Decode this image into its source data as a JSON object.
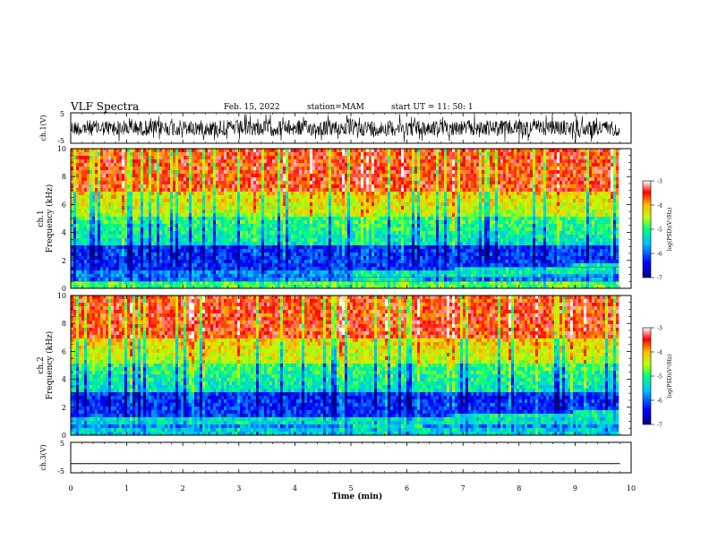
{
  "header": {
    "title": "VLF Spectra",
    "date": "Feb. 15, 2022",
    "station": "station=MAM",
    "start_ut": "start  UT  =   11: 50: 1"
  },
  "panels": {
    "waveform1": {
      "ylabel": "ch.1(V)",
      "yticks": [
        "5",
        "-5"
      ]
    },
    "spec1": {
      "ylabel_top": "ch.1",
      "ylabel": "Frequency  (kHz)",
      "yticks": [
        "10",
        "8",
        "6",
        "4",
        "2",
        "0"
      ]
    },
    "spec2": {
      "ylabel_top": "ch.2",
      "ylabel": "Frequency  (kHz)",
      "yticks": [
        "10",
        "8",
        "6",
        "4",
        "2",
        "0"
      ]
    },
    "waveform3": {
      "ylabel": "ch.3(V)",
      "yticks": [
        "5",
        "-5"
      ]
    }
  },
  "colorbar": {
    "label": "log(PSD)(V²/Hz)",
    "ticks": [
      "-3",
      "-4",
      "-5",
      "-6",
      "-7"
    ],
    "range": [
      -7,
      -3
    ],
    "colors": [
      "#00007f",
      "#0000ff",
      "#00bfff",
      "#00ff7f",
      "#bfff00",
      "#ffbf00",
      "#ff0000",
      "#ffffff"
    ]
  },
  "xaxis": {
    "label": "Time  (min)",
    "ticks": [
      "0",
      "1",
      "2",
      "3",
      "4",
      "5",
      "6",
      "7",
      "8",
      "9",
      "10"
    ],
    "range": [
      0,
      10
    ]
  },
  "chart_data": [
    {
      "type": "line",
      "ylabel": "ch.1(V)",
      "ylim": [
        -5,
        5
      ],
      "xlim": [
        0,
        10
      ],
      "description_values": {
        "signal": "dense noise waveform spanning roughly -5 to 5 V",
        "end_min": 9.8
      }
    },
    {
      "type": "heatmap",
      "ylabel": "ch.1 Frequency (kHz)",
      "ylim": [
        0,
        10
      ],
      "xlim": [
        0,
        9.8
      ],
      "zlim": [
        -7,
        -3
      ],
      "zlabel": "log(PSD)(V²/Hz)"
    },
    {
      "type": "heatmap",
      "ylabel": "ch.2 Frequency (kHz)",
      "ylim": [
        0,
        10
      ],
      "xlim": [
        0,
        9.8
      ],
      "zlim": [
        -7,
        -3
      ],
      "zlabel": "log(PSD)(V²/Hz)"
    },
    {
      "type": "line",
      "ylabel": "ch.3(V)",
      "ylim": [
        -5,
        5
      ],
      "xlim": [
        0,
        10
      ],
      "series": [
        {
          "x": [
            0,
            9.8
          ],
          "y": [
            -2,
            -2
          ]
        }
      ]
    }
  ]
}
